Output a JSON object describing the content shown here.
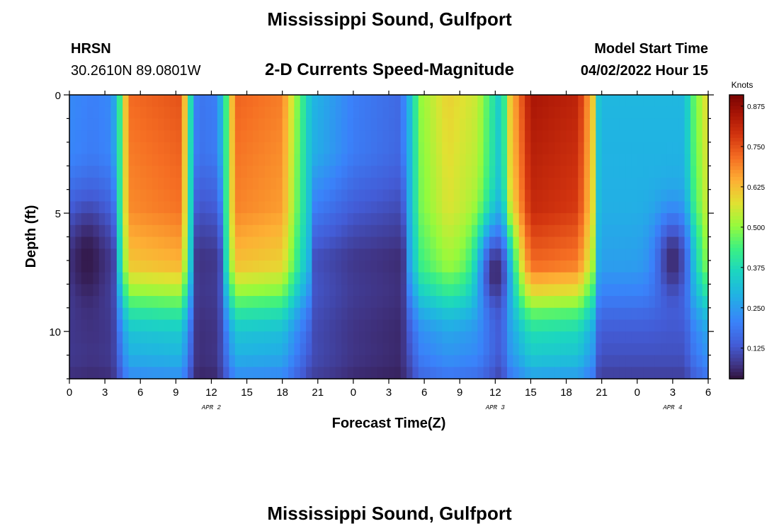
{
  "header": {
    "title": "Mississippi Sound, Gulfport",
    "station": "HRSN",
    "coords": "30.2610N  89.0801W",
    "subtitle": "2-D Currents Speed-Magnitude",
    "model_label": "Model Start Time",
    "model_time": "04/02/2022 Hour 15"
  },
  "footer": {
    "title": "Mississippi Sound, Gulfport"
  },
  "chart_data": {
    "type": "heatmap",
    "title": "2-D Currents Speed-Magnitude",
    "xlabel": "Forecast Time(Z)",
    "ylabel": "Depth (ft)",
    "x_range_hours": [
      0,
      54
    ],
    "y_range_ft": [
      0,
      12
    ],
    "y_reversed": true,
    "x_tick_labels": [
      "0",
      "3",
      "6",
      "9",
      "12",
      "15",
      "18",
      "21",
      "0",
      "3",
      "6",
      "9",
      "12",
      "15",
      "18",
      "21",
      "0",
      "3",
      "6"
    ],
    "y_tick_labels": [
      "0",
      "5",
      "10"
    ],
    "date_labels": [
      {
        "text": "APR 2",
        "hour": 12
      },
      {
        "text": "APR 3",
        "hour": 36
      },
      {
        "text": "APR 4",
        "hour": 51
      }
    ],
    "colorbar": {
      "unit": "Knots",
      "range": [
        0.03,
        0.91
      ],
      "ticks": [
        "0.125",
        "0.250",
        "0.375",
        "0.500",
        "0.625",
        "0.750",
        "0.875"
      ]
    },
    "surface_speed_profile_knots": [
      [
        0,
        0.22
      ],
      [
        2,
        0.2
      ],
      [
        3.6,
        0.22
      ],
      [
        4.2,
        0.4
      ],
      [
        5,
        0.72
      ],
      [
        9.5,
        0.75
      ],
      [
        10.2,
        0.4
      ],
      [
        10.8,
        0.18
      ],
      [
        12.5,
        0.2
      ],
      [
        13.3,
        0.45
      ],
      [
        14,
        0.73
      ],
      [
        18,
        0.7
      ],
      [
        19.2,
        0.5
      ],
      [
        20.5,
        0.3
      ],
      [
        24,
        0.2
      ],
      [
        28,
        0.16
      ],
      [
        29,
        0.35
      ],
      [
        29.6,
        0.5
      ],
      [
        32,
        0.6
      ],
      [
        34.5,
        0.55
      ],
      [
        35.8,
        0.4
      ],
      [
        36.5,
        0.32
      ],
      [
        37.2,
        0.6
      ],
      [
        39,
        0.85
      ],
      [
        43,
        0.82
      ],
      [
        44.3,
        0.6
      ],
      [
        44.8,
        0.3
      ],
      [
        52,
        0.3
      ],
      [
        52.7,
        0.45
      ],
      [
        54,
        0.6
      ]
    ],
    "depth_attenuation_factor": [
      [
        0,
        1.0
      ],
      [
        4.8,
        0.95
      ],
      [
        6,
        0.9
      ],
      [
        7.2,
        0.85
      ],
      [
        8.3,
        0.7
      ],
      [
        9.2,
        0.55
      ],
      [
        10,
        0.45
      ],
      [
        11,
        0.4
      ],
      [
        12,
        0.3
      ]
    ],
    "min_speed_cells": [
      {
        "hour": 1.5,
        "depth_ft": 7,
        "speed_knots": 0.04
      },
      {
        "hour": 36,
        "depth_ft": 7.5,
        "speed_knots": 0.06
      },
      {
        "hour": 51,
        "depth_ft": 7,
        "speed_knots": 0.06
      }
    ]
  }
}
